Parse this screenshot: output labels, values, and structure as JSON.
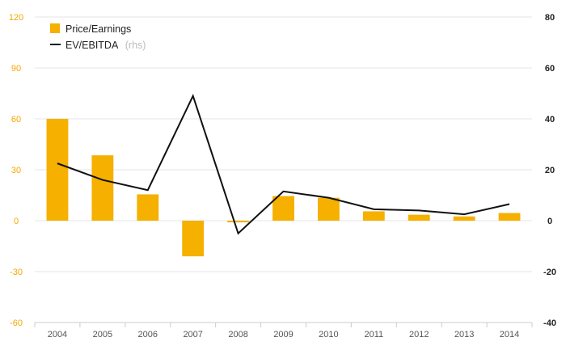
{
  "chart_data": {
    "type": "bar",
    "categories": [
      "2004",
      "2005",
      "2006",
      "2007",
      "2008",
      "2009",
      "2010",
      "2011",
      "2012",
      "2013",
      "2014"
    ],
    "series": [
      {
        "name": "Price/Earnings",
        "type": "bar",
        "axis": "left",
        "color": "#f5b000",
        "values": [
          60,
          38.5,
          15.5,
          -21,
          -1,
          14.5,
          13.5,
          5.5,
          3.5,
          2.5,
          4.5
        ]
      },
      {
        "name": "EV/EBITDA",
        "type": "line",
        "axis": "right",
        "color": "#111111",
        "values": [
          22.5,
          16,
          12,
          49,
          -5,
          11.5,
          9,
          4.5,
          4,
          2.5,
          6.5
        ]
      }
    ],
    "legend": {
      "position": "top-left",
      "items": [
        {
          "label": "Price/Earnings",
          "suffix": ""
        },
        {
          "label": "EV/EBITDA",
          "suffix": "(rhs)"
        }
      ]
    },
    "y_left": {
      "ylim": [
        -60,
        120
      ],
      "ticks": [
        -60,
        -30,
        0,
        30,
        60,
        90,
        120
      ],
      "tick_labels": [
        "-60",
        "-30",
        "0",
        "30",
        "60",
        "90",
        "120"
      ],
      "color": "#f5a800"
    },
    "y_right": {
      "ylim": [
        -40,
        80
      ],
      "ticks": [
        -40,
        -20,
        0,
        20,
        40,
        60,
        80
      ],
      "tick_labels": [
        "-40",
        "-20",
        "0",
        "20",
        "40",
        "60",
        "80"
      ],
      "color": "#222222"
    },
    "grid": true
  }
}
